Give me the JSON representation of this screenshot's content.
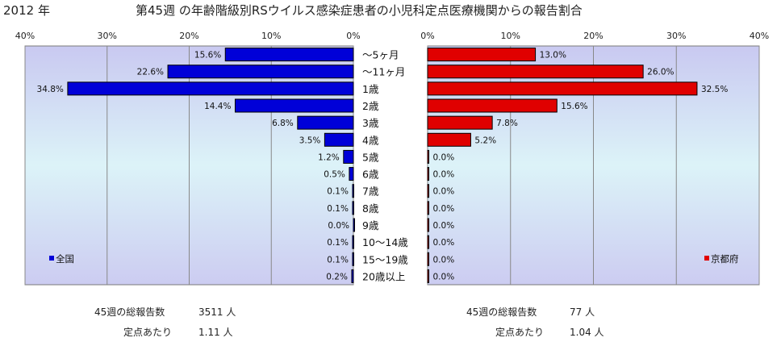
{
  "header": {
    "year": "2012 年",
    "title": "第45週 の年齢階級別RSウイルス感染症患者の小児科定点医療機関からの報告割合"
  },
  "colors": {
    "left_bar": "#0000d8",
    "right_bar": "#e00000",
    "grid": "#888888"
  },
  "chart_data": [
    {
      "type": "bar",
      "orientation": "horizontal",
      "direction": "right-to-left",
      "categories": [
        "～5ヶ月",
        "～11ヶ月",
        "1歳",
        "2歳",
        "3歳",
        "4歳",
        "5歳",
        "6歳",
        "7歳",
        "8歳",
        "9歳",
        "10～14歳",
        "15～19歳",
        "20歳以上"
      ],
      "series": [
        {
          "name": "全国",
          "values": [
            15.6,
            22.6,
            34.8,
            14.4,
            6.8,
            3.5,
            1.2,
            0.5,
            0.1,
            0.1,
            0.0,
            0.1,
            0.1,
            0.2
          ],
          "labels": [
            "15.6%",
            "22.6%",
            "34.8%",
            "14.4%",
            "6.8%",
            "3.5%",
            "1.2%",
            "0.5%",
            "0.1%",
            "0.1%",
            "0.0%",
            "0.1%",
            "0.1%",
            "0.2%"
          ]
        }
      ],
      "xlim": [
        0,
        40
      ],
      "ticks": [
        {
          "v": 40,
          "label": "40%"
        },
        {
          "v": 30,
          "label": "30%"
        },
        {
          "v": 20,
          "label": "20%"
        },
        {
          "v": 10,
          "label": "10%"
        },
        {
          "v": 0,
          "label": "0%"
        }
      ],
      "grid": true,
      "legend": "bottom-left"
    },
    {
      "type": "bar",
      "orientation": "horizontal",
      "direction": "left-to-right",
      "categories": [
        "～5ヶ月",
        "～11ヶ月",
        "1歳",
        "2歳",
        "3歳",
        "4歳",
        "5歳",
        "6歳",
        "7歳",
        "8歳",
        "9歳",
        "10～14歳",
        "15～19歳",
        "20歳以上"
      ],
      "series": [
        {
          "name": "京都府",
          "values": [
            13.0,
            26.0,
            32.5,
            15.6,
            7.8,
            5.2,
            0.0,
            0.0,
            0.0,
            0.0,
            0.0,
            0.0,
            0.0,
            0.0
          ],
          "labels": [
            "13.0%",
            "26.0%",
            "32.5%",
            "15.6%",
            "7.8%",
            "5.2%",
            "0.0%",
            "0.0%",
            "0.0%",
            "0.0%",
            "0.0%",
            "0.0%",
            "0.0%",
            "0.0%"
          ]
        }
      ],
      "xlim": [
        0,
        40
      ],
      "ticks": [
        {
          "v": 0,
          "label": "0%"
        },
        {
          "v": 10,
          "label": "10%"
        },
        {
          "v": 20,
          "label": "20%"
        },
        {
          "v": 30,
          "label": "30%"
        },
        {
          "v": 40,
          "label": "40%"
        }
      ],
      "grid": true,
      "legend": "bottom-right"
    }
  ],
  "summary": {
    "left": {
      "total_label": "45週の総報告数",
      "total_value": "3511 人",
      "per_label": "定点あたり",
      "per_value": "1.11 人"
    },
    "right": {
      "total_label": "45週の総報告数",
      "total_value": "77 人",
      "per_label": "定点あたり",
      "per_value": "1.04 人"
    }
  }
}
